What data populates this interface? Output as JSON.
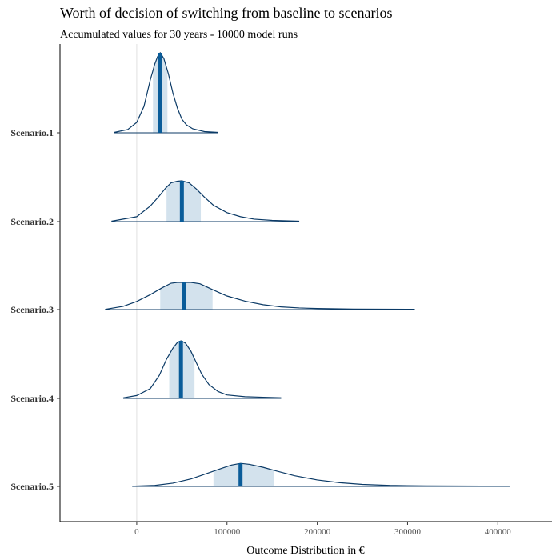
{
  "chart_data": {
    "type": "density",
    "title": "Worth of decision of switching from baseline to scenarios",
    "subtitle": "Accumulated values for 30 years - 10000 model runs",
    "xlabel": "Outcome Distribution in €",
    "ylabel": "",
    "xlim": [
      -85000,
      460000
    ],
    "xticks": [
      0,
      100000,
      200000,
      300000,
      400000
    ],
    "xtick_labels": [
      "0",
      "100000",
      "200000",
      "300000",
      "400000"
    ],
    "grid": "vertical line at 0",
    "colors": {
      "outline": "#0b3a66",
      "median": "#0a5c99",
      "band": "#d3e2ed",
      "baseline": "#0b3a66",
      "zero_line": "#e0e0e0"
    },
    "categories": [
      "Scenario.1",
      "Scenario.2",
      "Scenario.3",
      "Scenario.4",
      "Scenario.5"
    ],
    "series": [
      {
        "category": "Scenario.1",
        "min": -25000,
        "max": 90000,
        "q25": 18000,
        "median": 26000,
        "q75": 34000,
        "tail_end": 90000,
        "density": [
          [
            -25000,
            0.005
          ],
          [
            -10000,
            0.04
          ],
          [
            0,
            0.13
          ],
          [
            8000,
            0.33
          ],
          [
            15000,
            0.66
          ],
          [
            20000,
            0.86
          ],
          [
            23000,
            0.95
          ],
          [
            26000,
            1.0
          ],
          [
            30000,
            0.93
          ],
          [
            35000,
            0.74
          ],
          [
            40000,
            0.5
          ],
          [
            45000,
            0.31
          ],
          [
            50000,
            0.17
          ],
          [
            55000,
            0.1
          ],
          [
            62000,
            0.05
          ],
          [
            75000,
            0.015
          ],
          [
            90000,
            0.005
          ]
        ]
      },
      {
        "category": "Scenario.2",
        "min": -28000,
        "max": 180000,
        "q25": 33000,
        "median": 50000,
        "q75": 71000,
        "tail_end": 180000,
        "density": [
          [
            -28000,
            0.01
          ],
          [
            0,
            0.12
          ],
          [
            15000,
            0.38
          ],
          [
            25000,
            0.63
          ],
          [
            32000,
            0.82
          ],
          [
            38000,
            0.95
          ],
          [
            45000,
            0.99
          ],
          [
            50000,
            1.0
          ],
          [
            58000,
            0.95
          ],
          [
            66000,
            0.8
          ],
          [
            75000,
            0.6
          ],
          [
            85000,
            0.4
          ],
          [
            100000,
            0.22
          ],
          [
            115000,
            0.12
          ],
          [
            130000,
            0.06
          ],
          [
            150000,
            0.03
          ],
          [
            180000,
            0.01
          ]
        ]
      },
      {
        "category": "Scenario.3",
        "min": -35000,
        "max": 308000,
        "q25": 26000,
        "median": 52000,
        "q75": 84000,
        "tail_end": 308000,
        "density": [
          [
            -35000,
            0.01
          ],
          [
            -15000,
            0.12
          ],
          [
            0,
            0.3
          ],
          [
            15000,
            0.55
          ],
          [
            28000,
            0.8
          ],
          [
            38000,
            0.97
          ],
          [
            45000,
            1.0
          ],
          [
            60000,
            1.0
          ],
          [
            70000,
            0.95
          ],
          [
            85000,
            0.72
          ],
          [
            100000,
            0.5
          ],
          [
            120000,
            0.31
          ],
          [
            140000,
            0.18
          ],
          [
            160000,
            0.1
          ],
          [
            180000,
            0.06
          ],
          [
            200000,
            0.04
          ],
          [
            240000,
            0.02
          ],
          [
            308000,
            0.01
          ]
        ]
      },
      {
        "category": "Scenario.4",
        "min": -15000,
        "max": 160000,
        "q25": 36000,
        "median": 49000,
        "q75": 64000,
        "tail_end": 160000,
        "density": [
          [
            -15000,
            0.01
          ],
          [
            0,
            0.05
          ],
          [
            15000,
            0.17
          ],
          [
            25000,
            0.4
          ],
          [
            33000,
            0.68
          ],
          [
            40000,
            0.87
          ],
          [
            45000,
            0.97
          ],
          [
            49000,
            1.0
          ],
          [
            54000,
            0.96
          ],
          [
            60000,
            0.82
          ],
          [
            66000,
            0.62
          ],
          [
            72000,
            0.42
          ],
          [
            80000,
            0.24
          ],
          [
            90000,
            0.12
          ],
          [
            100000,
            0.06
          ],
          [
            120000,
            0.03
          ],
          [
            140000,
            0.02
          ],
          [
            160000,
            0.01
          ]
        ]
      },
      {
        "category": "Scenario.5",
        "min": -5000,
        "max": 413000,
        "q25": 85000,
        "median": 115000,
        "q75": 152000,
        "tail_end": 413000,
        "density": [
          [
            -5000,
            0.01
          ],
          [
            20000,
            0.04
          ],
          [
            40000,
            0.13
          ],
          [
            60000,
            0.3
          ],
          [
            80000,
            0.55
          ],
          [
            95000,
            0.74
          ],
          [
            105000,
            0.86
          ],
          [
            115000,
            0.93
          ],
          [
            125000,
            0.89
          ],
          [
            140000,
            0.77
          ],
          [
            155000,
            0.62
          ],
          [
            175000,
            0.43
          ],
          [
            200000,
            0.26
          ],
          [
            225000,
            0.15
          ],
          [
            250000,
            0.08
          ],
          [
            280000,
            0.04
          ],
          [
            320000,
            0.02
          ],
          [
            413000,
            0.01
          ]
        ]
      }
    ]
  }
}
